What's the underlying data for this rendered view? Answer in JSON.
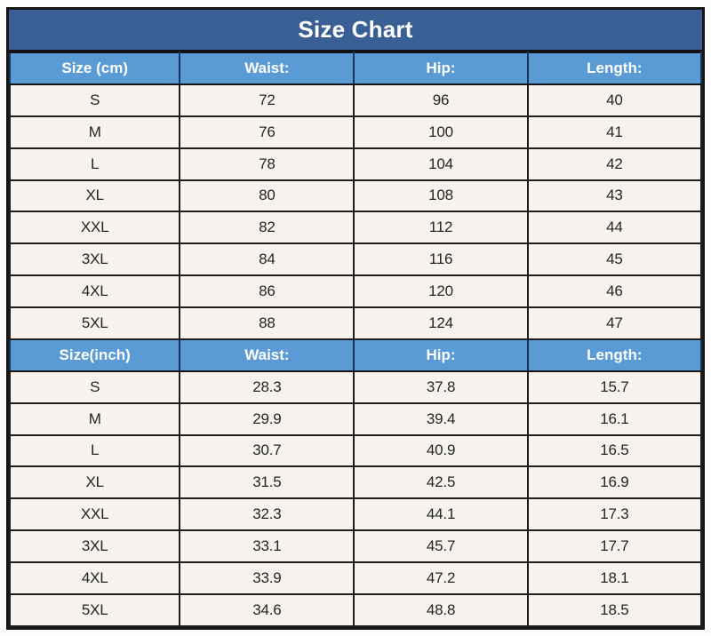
{
  "title": "Size Chart",
  "colors": {
    "title_bar_bg": "#3a5f94",
    "header_row_bg": "#5b9bd5",
    "cell_bg": "#f6f3ee",
    "border": "#1d1d1d",
    "header_text": "#ffffff",
    "cell_text": "#252525"
  },
  "chart_data": {
    "type": "table",
    "title": "Size Chart",
    "sections": [
      {
        "unit": "cm",
        "headers": [
          "Size (cm)",
          "Waist:",
          "Hip:",
          "Length:"
        ],
        "rows": [
          [
            "S",
            "72",
            "96",
            "40"
          ],
          [
            "M",
            "76",
            "100",
            "41"
          ],
          [
            "L",
            "78",
            "104",
            "42"
          ],
          [
            "XL",
            "80",
            "108",
            "43"
          ],
          [
            "XXL",
            "82",
            "112",
            "44"
          ],
          [
            "3XL",
            "84",
            "116",
            "45"
          ],
          [
            "4XL",
            "86",
            "120",
            "46"
          ],
          [
            "5XL",
            "88",
            "124",
            "47"
          ]
        ]
      },
      {
        "unit": "inch",
        "headers": [
          "Size(inch)",
          "Waist:",
          "Hip:",
          "Length:"
        ],
        "rows": [
          [
            "S",
            "28.3",
            "37.8",
            "15.7"
          ],
          [
            "M",
            "29.9",
            "39.4",
            "16.1"
          ],
          [
            "L",
            "30.7",
            "40.9",
            "16.5"
          ],
          [
            "XL",
            "31.5",
            "42.5",
            "16.9"
          ],
          [
            "XXL",
            "32.3",
            "44.1",
            "17.3"
          ],
          [
            "3XL",
            "33.1",
            "45.7",
            "17.7"
          ],
          [
            "4XL",
            "33.9",
            "47.2",
            "18.1"
          ],
          [
            "5XL",
            "34.6",
            "48.8",
            "18.5"
          ]
        ]
      }
    ]
  }
}
